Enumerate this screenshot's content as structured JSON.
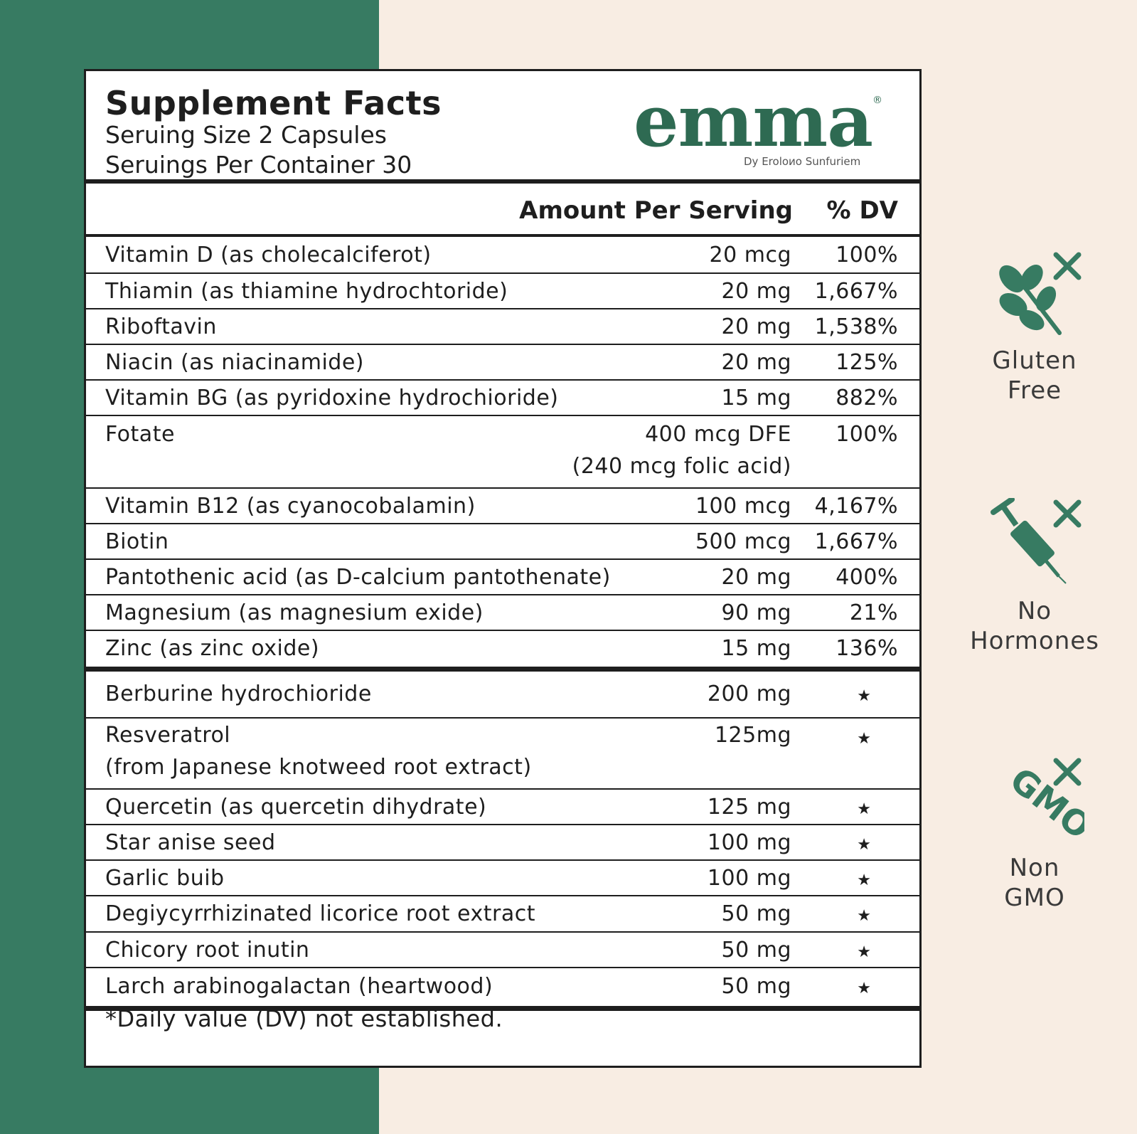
{
  "colors": {
    "brand_green": "#377b62",
    "cream": "#f8ede3",
    "logo_green": "#2e6a52"
  },
  "label": {
    "title": "Supplement Facts",
    "serving_size": "Seruing Size 2 Capsules",
    "servings_per_container": "Seruings Per Container  30",
    "brand": "emma",
    "brand_mark": "®",
    "tagline": "Dy Eroloио Sunfuriem",
    "col_amount": "Amount Per Serving",
    "col_dv": "% DV",
    "vitamins": [
      {
        "name": "Vitamin D (as cholecalciferot)",
        "amount": "20 mcg",
        "dv": "100%"
      },
      {
        "name": "Thiamin (as thiamine hydrochtoride)",
        "amount": "20 mg",
        "dv": "1,667%"
      },
      {
        "name": "Riboftavin",
        "amount": "20 mg",
        "dv": "1,538%"
      },
      {
        "name": "Niacin (as niacinamide)",
        "amount": "20 mg",
        "dv": "125%"
      },
      {
        "name": "Vitamin BG (as pyridoxine hydrochioride)",
        "amount": "15 mg",
        "dv": "882%"
      },
      {
        "name": "Fotate",
        "amount": "400 mcg DFE",
        "amount2": "(240 mcg folic acid)",
        "dv": "100%"
      },
      {
        "name": "Vitamin B12 (as cyanocobalamin)",
        "amount": "100 mcg",
        "dv": "4,167%"
      },
      {
        "name": "Biotin",
        "amount": "500 mcg",
        "dv": "1,667%"
      },
      {
        "name": "Pantothenic acid (as D-calcium pantothenate)",
        "amount": "20 mg",
        "dv": "400%"
      },
      {
        "name": "Magnesium (as magnesium exide)",
        "amount": "90 mg",
        "dv": "21%"
      },
      {
        "name": "Zinc (as zinc oxide)",
        "amount": "15 mg",
        "dv": "136%"
      }
    ],
    "others": [
      {
        "name": "Berburine hydrochioride",
        "amount": "200 mg",
        "dv": "★"
      },
      {
        "name": "Resveratrol",
        "name2": "(from Japanese knotweed root extract)",
        "amount": "125mg",
        "dv": "★"
      },
      {
        "name": "Quercetin (as quercetin dihydrate)",
        "amount": "125 mg",
        "dv": "★"
      },
      {
        "name": "Star anise seed",
        "amount": "100 mg",
        "dv": "★"
      },
      {
        "name": "Garlic buib",
        "amount": "100 mg",
        "dv": "★"
      },
      {
        "name": "Degiycyrrhizinated licorice root extract",
        "amount": "50 mg",
        "dv": "★"
      },
      {
        "name": "Chicory root inutin",
        "amount": "50 mg",
        "dv": "★"
      },
      {
        "name": "Larch arabinogalactan (heartwood)",
        "amount": "50 mg",
        "dv": "★"
      }
    ],
    "footnote": "*Daily value (DV) not established."
  },
  "badges": [
    {
      "icon": "wheat-crossed-icon",
      "line1": "Gluten",
      "line2": "Free"
    },
    {
      "icon": "syringe-crossed-icon",
      "line1": "No",
      "line2": "Hormones"
    },
    {
      "icon": "gmo-crossed-icon",
      "word": "GMO",
      "line1": "Non",
      "line2": "GMO"
    }
  ]
}
